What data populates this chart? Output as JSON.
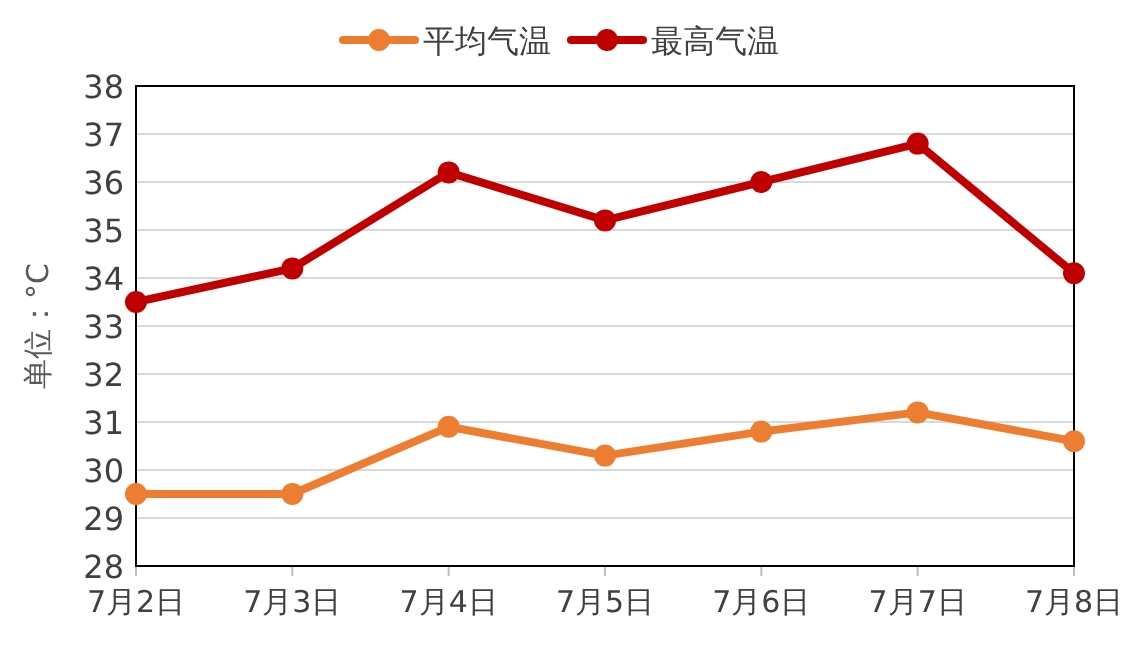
{
  "chart_data": {
    "type": "line",
    "ylabel": "单位：°C",
    "categories": [
      "7月2日",
      "7月3日",
      "7月4日",
      "7月5日",
      "7月6日",
      "7月7日",
      "7月8日"
    ],
    "series": [
      {
        "name": "平均气温",
        "color": "#ed7d31",
        "values": [
          29.5,
          29.5,
          30.9,
          30.3,
          30.8,
          31.2,
          30.6
        ]
      },
      {
        "name": "最高气温",
        "color": "#c00000",
        "values": [
          33.5,
          34.2,
          36.2,
          35.2,
          36.0,
          36.8,
          34.1
        ]
      }
    ],
    "ylim": [
      28,
      38
    ],
    "yticks": [
      28,
      29,
      30,
      31,
      32,
      33,
      34,
      35,
      36,
      37,
      38
    ],
    "grid": "y",
    "legend": "top",
    "marker": "circle",
    "line_style": "solid"
  }
}
